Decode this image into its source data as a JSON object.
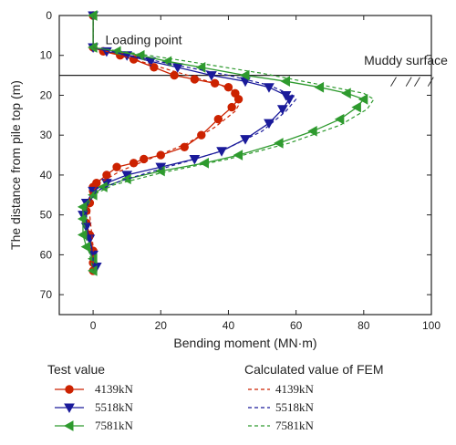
{
  "chart_data": {
    "type": "line",
    "xlabel": "Bending moment (MN·m)",
    "ylabel": "The distance from pile top (m)",
    "xlim": [
      -10,
      100
    ],
    "ylim": [
      0,
      75
    ],
    "y_inverted": true,
    "xticks": [
      0,
      20,
      40,
      60,
      80,
      100
    ],
    "yticks": [
      0,
      10,
      20,
      30,
      40,
      50,
      60,
      70
    ],
    "grid": false,
    "annotations": [
      {
        "text": "Loading point",
        "x": 2,
        "y": 9.5
      },
      {
        "text": "Muddy surface",
        "x": 72,
        "y": 13.5
      }
    ],
    "reference_lines": [
      {
        "name": "muddy-surface",
        "y": 15
      }
    ],
    "legend_groups": [
      {
        "title": "Test value",
        "entries": [
          "4139kN",
          "5518kN",
          "7581kN"
        ]
      },
      {
        "title": "Calculated value of FEM",
        "entries": [
          "4139kN",
          "5518kN",
          "7581kN"
        ]
      }
    ],
    "colors": {
      "4139kN": "#cc2200",
      "5518kN": "#1a1a9a",
      "7581kN": "#2e9a2e",
      "axis": "#222222"
    },
    "series": [
      {
        "name": "4139kN",
        "kind": "test",
        "marker": "circle",
        "points": [
          [
            0,
            0
          ],
          [
            0,
            8
          ],
          [
            3,
            9
          ],
          [
            8,
            10
          ],
          [
            12,
            11
          ],
          [
            18,
            13
          ],
          [
            24,
            15
          ],
          [
            30,
            16
          ],
          [
            36,
            17
          ],
          [
            40,
            18
          ],
          [
            42,
            19.5
          ],
          [
            43,
            21
          ],
          [
            41,
            23
          ],
          [
            37,
            26
          ],
          [
            32,
            30
          ],
          [
            27,
            33
          ],
          [
            20,
            35
          ],
          [
            15,
            36
          ],
          [
            12,
            37
          ],
          [
            7,
            38
          ],
          [
            4,
            40
          ],
          [
            1,
            42
          ],
          [
            0,
            43
          ],
          [
            0,
            44
          ],
          [
            -1,
            47
          ],
          [
            -2,
            49
          ],
          [
            -2,
            52
          ],
          [
            -1,
            55
          ],
          [
            0,
            59
          ],
          [
            0,
            62
          ],
          [
            0,
            64
          ]
        ]
      },
      {
        "name": "5518kN",
        "kind": "test",
        "marker": "triangle-down",
        "points": [
          [
            0,
            0
          ],
          [
            0,
            8
          ],
          [
            4,
            9
          ],
          [
            10,
            10
          ],
          [
            17,
            11.5
          ],
          [
            25,
            13
          ],
          [
            35,
            15
          ],
          [
            45,
            16.5
          ],
          [
            52,
            18
          ],
          [
            57,
            20
          ],
          [
            58,
            21
          ],
          [
            56,
            23.5
          ],
          [
            52,
            27
          ],
          [
            45,
            31
          ],
          [
            38,
            34
          ],
          [
            30,
            36
          ],
          [
            20,
            38
          ],
          [
            10,
            40
          ],
          [
            4,
            42
          ],
          [
            0,
            44
          ],
          [
            -2,
            47
          ],
          [
            -3,
            50
          ],
          [
            -2,
            53
          ],
          [
            -1,
            56
          ],
          [
            0,
            60
          ],
          [
            1,
            63
          ]
        ]
      },
      {
        "name": "7581kN",
        "kind": "test",
        "marker": "triangle-left",
        "points": [
          [
            0,
            0
          ],
          [
            0,
            8
          ],
          [
            7,
            9
          ],
          [
            14,
            10
          ],
          [
            22,
            11.5
          ],
          [
            32,
            13
          ],
          [
            45,
            15
          ],
          [
            57,
            16.5
          ],
          [
            67,
            18
          ],
          [
            75,
            19.5
          ],
          [
            80,
            21
          ],
          [
            78,
            23
          ],
          [
            73,
            26
          ],
          [
            65,
            29
          ],
          [
            55,
            32
          ],
          [
            43,
            35
          ],
          [
            33,
            37
          ],
          [
            20,
            39
          ],
          [
            10,
            41
          ],
          [
            3,
            43
          ],
          [
            0,
            45
          ],
          [
            -3,
            48
          ],
          [
            -3,
            51
          ],
          [
            -3,
            55
          ],
          [
            -2,
            58
          ],
          [
            0,
            61
          ],
          [
            0,
            64
          ]
        ]
      },
      {
        "name": "4139kN",
        "kind": "fem",
        "points": [
          [
            0,
            0
          ],
          [
            0,
            8
          ],
          [
            6,
            9.5
          ],
          [
            16,
            12
          ],
          [
            28,
            15
          ],
          [
            38,
            17.5
          ],
          [
            43,
            20
          ],
          [
            44,
            21
          ],
          [
            42,
            24
          ],
          [
            36,
            28
          ],
          [
            28,
            32
          ],
          [
            18,
            35.5
          ],
          [
            8,
            39
          ],
          [
            2,
            42
          ],
          [
            -1,
            45
          ],
          [
            -1,
            50
          ],
          [
            0,
            58
          ],
          [
            0,
            64
          ]
        ]
      },
      {
        "name": "5518kN",
        "kind": "fem",
        "points": [
          [
            0,
            0
          ],
          [
            0,
            8
          ],
          [
            8,
            9.5
          ],
          [
            22,
            12
          ],
          [
            40,
            15
          ],
          [
            52,
            17.5
          ],
          [
            59,
            20
          ],
          [
            60,
            21
          ],
          [
            57,
            24
          ],
          [
            50,
            29
          ],
          [
            38,
            34
          ],
          [
            22,
            38
          ],
          [
            8,
            41.5
          ],
          [
            1,
            44
          ],
          [
            -2,
            48
          ],
          [
            -2,
            53
          ],
          [
            0,
            60
          ],
          [
            0,
            64
          ]
        ]
      },
      {
        "name": "7581kN",
        "kind": "fem",
        "points": [
          [
            0,
            0
          ],
          [
            0,
            8
          ],
          [
            10,
            9.2
          ],
          [
            28,
            11.5
          ],
          [
            50,
            14.5
          ],
          [
            68,
            17.5
          ],
          [
            80,
            19.5
          ],
          [
            83,
            21
          ],
          [
            81,
            23.5
          ],
          [
            73,
            27.5
          ],
          [
            58,
            32
          ],
          [
            40,
            36
          ],
          [
            20,
            39.5
          ],
          [
            6,
            42.5
          ],
          [
            0,
            45
          ],
          [
            -3,
            50
          ],
          [
            -2,
            56
          ],
          [
            0,
            64
          ]
        ]
      }
    ]
  }
}
